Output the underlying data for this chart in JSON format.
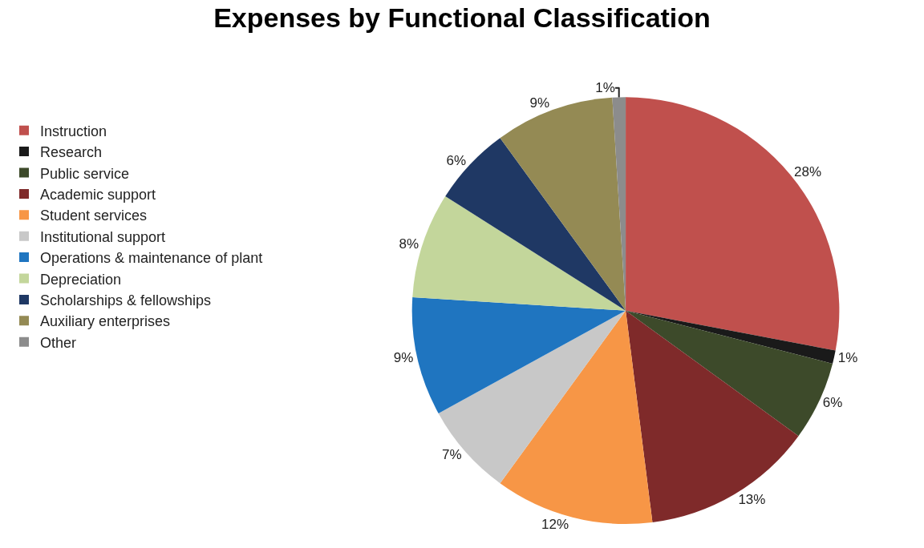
{
  "chart_data": {
    "type": "pie",
    "title": "Expenses by Functional Classification",
    "categories": [
      "Instruction",
      "Research",
      "Public service",
      "Academic support",
      "Student services",
      "Institutional support",
      "Operations & maintenance of plant",
      "Depreciation",
      "Scholarships & fellowships",
      "Auxiliary enterprises",
      "Other"
    ],
    "values": [
      28,
      1,
      6,
      13,
      12,
      7,
      9,
      8,
      6,
      9,
      1
    ],
    "value_labels": [
      "28%",
      "1%",
      "6%",
      "13%",
      "12%",
      "7%",
      "9%",
      "8%",
      "6%",
      "9%",
      "1%"
    ],
    "colors": [
      "#c0504d",
      "#1a1a1a",
      "#3d4a2a",
      "#7f2a2a",
      "#f79646",
      "#c8c8c8",
      "#1f75c0",
      "#c3d69b",
      "#1f3864",
      "#948a54",
      "#8c8c8c"
    ],
    "legend": "left"
  }
}
